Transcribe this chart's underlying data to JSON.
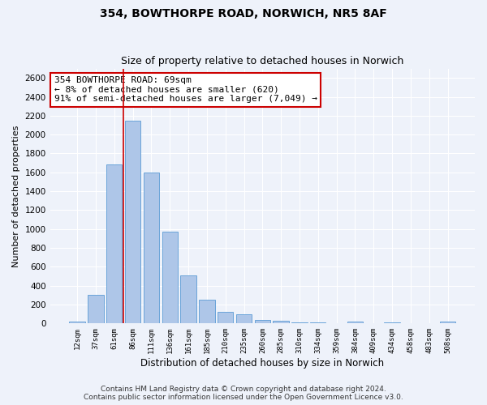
{
  "title": "354, BOWTHORPE ROAD, NORWICH, NR5 8AF",
  "subtitle": "Size of property relative to detached houses in Norwich",
  "xlabel": "Distribution of detached houses by size in Norwich",
  "ylabel": "Number of detached properties",
  "categories": [
    "12sqm",
    "37sqm",
    "61sqm",
    "86sqm",
    "111sqm",
    "136sqm",
    "161sqm",
    "185sqm",
    "210sqm",
    "235sqm",
    "260sqm",
    "285sqm",
    "310sqm",
    "334sqm",
    "359sqm",
    "384sqm",
    "409sqm",
    "434sqm",
    "458sqm",
    "483sqm",
    "508sqm"
  ],
  "values": [
    20,
    300,
    1680,
    2150,
    1600,
    970,
    510,
    248,
    120,
    100,
    40,
    30,
    10,
    10,
    5,
    20,
    5,
    15,
    5,
    5,
    20
  ],
  "bar_color": "#aec6e8",
  "bar_edge_color": "#5b9bd5",
  "vline_color": "#cc0000",
  "vline_xindex": 2.5,
  "annotation_text": "354 BOWTHORPE ROAD: 69sqm\n← 8% of detached houses are smaller (620)\n91% of semi-detached houses are larger (7,049) →",
  "annotation_box_color": "white",
  "annotation_box_edge_color": "#cc0000",
  "ylim": [
    0,
    2700
  ],
  "yticks": [
    0,
    200,
    400,
    600,
    800,
    1000,
    1200,
    1400,
    1600,
    1800,
    2000,
    2200,
    2400,
    2600
  ],
  "footer_line1": "Contains HM Land Registry data © Crown copyright and database right 2024.",
  "footer_line2": "Contains public sector information licensed under the Open Government Licence v3.0.",
  "bg_color": "#eef2fa",
  "grid_color": "white",
  "title_fontsize": 10,
  "subtitle_fontsize": 9,
  "annotation_fontsize": 8,
  "footer_fontsize": 6.5,
  "ylabel_fontsize": 8,
  "xlabel_fontsize": 8.5
}
